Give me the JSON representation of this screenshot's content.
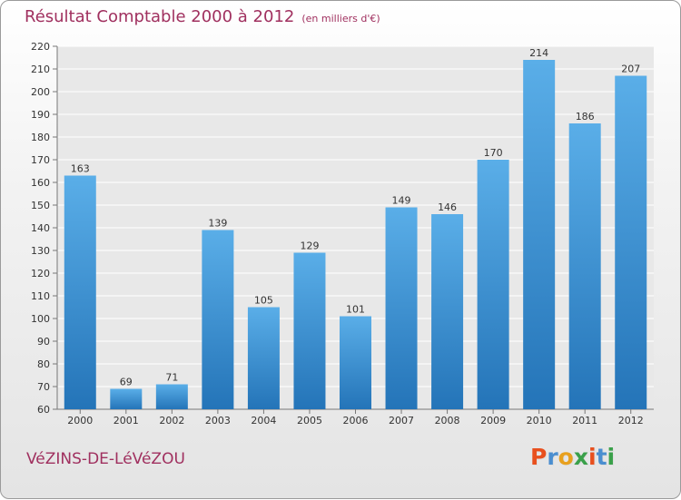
{
  "header": {
    "title": "Résultat Comptable 2000 à 2012",
    "subtitle": "(en milliers d'€)"
  },
  "footer": {
    "city": "VéZINS-DE-LéVéZOU",
    "logo": "Proxiti"
  },
  "colors": {
    "bar_light": "#5aaee8",
    "bar_dark": "#2474b8",
    "title": "#a0305f",
    "logo_letters": [
      "#e8501e",
      "#4a8ed0",
      "#e8a01e",
      "#3aa04a",
      "#e8501e",
      "#4a8ed0",
      "#3aa04a"
    ]
  },
  "chart_data": {
    "type": "bar",
    "title": "Résultat Comptable 2000 à 2012",
    "subtitle": "(en milliers d'€)",
    "categories": [
      "2000",
      "2001",
      "2002",
      "2003",
      "2004",
      "2005",
      "2006",
      "2007",
      "2008",
      "2009",
      "2010",
      "2011",
      "2012"
    ],
    "values": [
      163,
      69,
      71,
      139,
      105,
      129,
      101,
      149,
      146,
      170,
      214,
      186,
      207
    ],
    "ylim": [
      60,
      220
    ],
    "yticks": [
      60,
      70,
      80,
      90,
      100,
      110,
      120,
      130,
      140,
      150,
      160,
      170,
      180,
      190,
      200,
      210,
      220
    ],
    "grid": true,
    "data_labels": true
  }
}
